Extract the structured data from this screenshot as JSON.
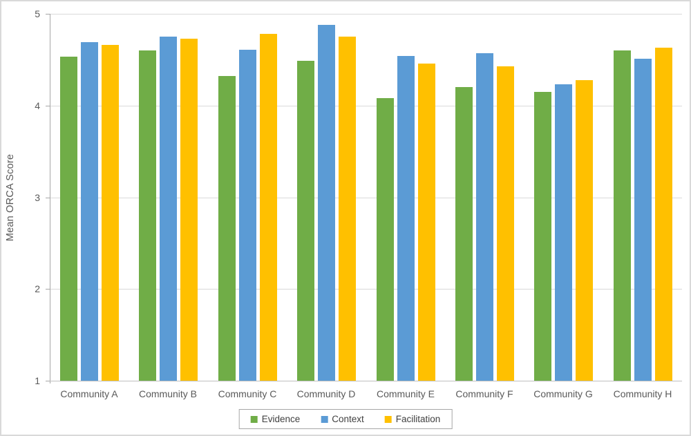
{
  "chart_data": {
    "type": "bar",
    "title": "",
    "xlabel": "",
    "ylabel": "Mean ORCA Score",
    "ylim": [
      1,
      5
    ],
    "yticks": [
      1,
      2,
      3,
      4,
      5
    ],
    "grid": true,
    "legend_position": "bottom",
    "categories": [
      "Community A",
      "Community B",
      "Community C",
      "Community D",
      "Community E",
      "Community F",
      "Community G",
      "Community H"
    ],
    "series": [
      {
        "name": "Evidence",
        "color": "#70AD47",
        "values": [
          4.53,
          4.6,
          4.32,
          4.49,
          4.08,
          4.2,
          4.15,
          4.6
        ]
      },
      {
        "name": "Context",
        "color": "#5B9BD5",
        "values": [
          4.69,
          4.75,
          4.61,
          4.88,
          4.54,
          4.57,
          4.23,
          4.51
        ]
      },
      {
        "name": "Facilitation",
        "color": "#FFC000",
        "values": [
          4.66,
          4.73,
          4.78,
          4.75,
          4.46,
          4.43,
          4.28,
          4.63
        ]
      }
    ]
  },
  "colors": {
    "background": "#FFFFFF",
    "figure_border": "#D9D9D9",
    "axis_line": "#A6A6A6",
    "gridline": "#D9D9D9",
    "label_text": "#595959"
  }
}
